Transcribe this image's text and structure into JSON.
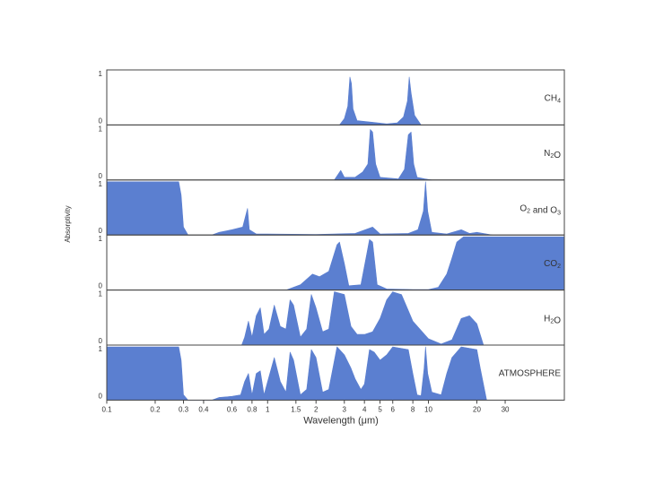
{
  "chart_data": {
    "type": "area",
    "xlabel": "Wavelength (μm)",
    "ylabel": "Absorptivity",
    "x_scale": "log",
    "xlim": [
      0.1,
      70
    ],
    "ylim": [
      0,
      1
    ],
    "x_ticks": [
      0.1,
      0.2,
      0.3,
      0.4,
      0.6,
      0.8,
      1,
      1.5,
      2,
      3,
      4,
      5,
      6,
      8,
      10,
      20,
      30
    ],
    "x_tick_labels": [
      "0.1",
      "0.2",
      "0.3",
      "0.4",
      "0.6",
      "0.8",
      "1",
      "1.5",
      "2",
      "3",
      "4",
      "5",
      "6",
      "8",
      "10",
      "20",
      "30"
    ],
    "panel_ytick_labels": [
      "1",
      "0"
    ],
    "panels": [
      {
        "name": "CH",
        "sub": "4",
        "points": [
          [
            2.8,
            0
          ],
          [
            3.0,
            0.12
          ],
          [
            3.15,
            0.35
          ],
          [
            3.25,
            0.9
          ],
          [
            3.32,
            0.78
          ],
          [
            3.4,
            0.3
          ],
          [
            3.6,
            0.08
          ],
          [
            4.5,
            0.05
          ],
          [
            5.5,
            0.02
          ],
          [
            6.4,
            0.04
          ],
          [
            7.0,
            0.15
          ],
          [
            7.4,
            0.45
          ],
          [
            7.6,
            0.9
          ],
          [
            7.8,
            0.6
          ],
          [
            8.2,
            0.18
          ],
          [
            9.0,
            0.0
          ]
        ]
      },
      {
        "name": "N",
        "sub": "2",
        "rest": "O",
        "points": [
          [
            2.6,
            0
          ],
          [
            2.85,
            0.18
          ],
          [
            3.0,
            0.05
          ],
          [
            3.5,
            0.05
          ],
          [
            3.9,
            0.15
          ],
          [
            4.2,
            0.3
          ],
          [
            4.35,
            0.95
          ],
          [
            4.5,
            0.9
          ],
          [
            4.7,
            0.3
          ],
          [
            5.0,
            0.05
          ],
          [
            6.5,
            0.02
          ],
          [
            7.1,
            0.2
          ],
          [
            7.5,
            0.85
          ],
          [
            7.8,
            0.9
          ],
          [
            8.1,
            0.3
          ],
          [
            8.5,
            0.05
          ],
          [
            9.5,
            0.02
          ],
          [
            10.5,
            0
          ]
        ]
      },
      {
        "name": "O",
        "sub": "2",
        "rest": " and O",
        "sub2": "3",
        "points": [
          [
            0.1,
            0
          ],
          [
            0.1,
            1
          ],
          [
            0.28,
            1
          ],
          [
            0.29,
            0.75
          ],
          [
            0.3,
            0.15
          ],
          [
            0.32,
            0.0
          ],
          [
            0.45,
            0.0
          ],
          [
            0.5,
            0.05
          ],
          [
            0.6,
            0.1
          ],
          [
            0.7,
            0.15
          ],
          [
            0.75,
            0.5
          ],
          [
            0.77,
            0.1
          ],
          [
            0.85,
            0.02
          ],
          [
            1.0,
            0.02
          ],
          [
            2.0,
            0.01
          ],
          [
            3.5,
            0.03
          ],
          [
            4.5,
            0.15
          ],
          [
            5.0,
            0.02
          ],
          [
            7.5,
            0.03
          ],
          [
            8.6,
            0.1
          ],
          [
            9.3,
            0.45
          ],
          [
            9.6,
            1.0
          ],
          [
            9.9,
            0.45
          ],
          [
            10.5,
            0.05
          ],
          [
            13.0,
            0.02
          ],
          [
            16.0,
            0.1
          ],
          [
            18.0,
            0.03
          ],
          [
            20.0,
            0.05
          ],
          [
            25.0,
            0
          ]
        ]
      },
      {
        "name": "CO",
        "sub": "2",
        "points": [
          [
            1.3,
            0
          ],
          [
            1.6,
            0.1
          ],
          [
            1.9,
            0.3
          ],
          [
            2.1,
            0.25
          ],
          [
            2.4,
            0.35
          ],
          [
            2.7,
            0.85
          ],
          [
            2.8,
            0.9
          ],
          [
            3.0,
            0.5
          ],
          [
            3.2,
            0.08
          ],
          [
            3.8,
            0.1
          ],
          [
            4.15,
            0.7
          ],
          [
            4.3,
            0.95
          ],
          [
            4.5,
            0.9
          ],
          [
            4.8,
            0.1
          ],
          [
            5.5,
            0.02
          ],
          [
            8.0,
            0.01
          ],
          [
            10.0,
            0.01
          ],
          [
            11.5,
            0.05
          ],
          [
            13.0,
            0.3
          ],
          [
            14.0,
            0.6
          ],
          [
            15.0,
            0.9
          ],
          [
            16.5,
            1.0
          ],
          [
            70,
            1.0
          ],
          [
            70,
            0
          ]
        ]
      },
      {
        "name": "H",
        "sub": "2",
        "rest": "O",
        "points": [
          [
            0.69,
            0
          ],
          [
            0.72,
            0.15
          ],
          [
            0.76,
            0.45
          ],
          [
            0.8,
            0.15
          ],
          [
            0.85,
            0.55
          ],
          [
            0.9,
            0.7
          ],
          [
            0.95,
            0.2
          ],
          [
            1.02,
            0.3
          ],
          [
            1.1,
            0.75
          ],
          [
            1.2,
            0.35
          ],
          [
            1.3,
            0.3
          ],
          [
            1.38,
            0.85
          ],
          [
            1.45,
            0.75
          ],
          [
            1.6,
            0.15
          ],
          [
            1.75,
            0.3
          ],
          [
            1.87,
            0.95
          ],
          [
            2.0,
            0.7
          ],
          [
            2.2,
            0.25
          ],
          [
            2.4,
            0.3
          ],
          [
            2.6,
            1.0
          ],
          [
            3.0,
            0.95
          ],
          [
            3.3,
            0.35
          ],
          [
            3.6,
            0.2
          ],
          [
            4.0,
            0.2
          ],
          [
            4.5,
            0.25
          ],
          [
            5.0,
            0.5
          ],
          [
            5.5,
            0.85
          ],
          [
            6.0,
            1.0
          ],
          [
            6.8,
            0.95
          ],
          [
            8.0,
            0.45
          ],
          [
            10.0,
            0.12
          ],
          [
            12.0,
            0.02
          ],
          [
            14.0,
            0.1
          ],
          [
            16.0,
            0.5
          ],
          [
            18.0,
            0.55
          ],
          [
            20.0,
            0.4
          ],
          [
            22.0,
            0.0
          ]
        ]
      },
      {
        "name": "ATMOSPHERE",
        "points": [
          [
            0.1,
            0
          ],
          [
            0.1,
            1
          ],
          [
            0.28,
            1
          ],
          [
            0.29,
            0.75
          ],
          [
            0.3,
            0.1
          ],
          [
            0.32,
            0.0
          ],
          [
            0.45,
            0.0
          ],
          [
            0.5,
            0.05
          ],
          [
            0.6,
            0.07
          ],
          [
            0.68,
            0.1
          ],
          [
            0.72,
            0.35
          ],
          [
            0.76,
            0.5
          ],
          [
            0.8,
            0.1
          ],
          [
            0.85,
            0.5
          ],
          [
            0.9,
            0.55
          ],
          [
            0.95,
            0.1
          ],
          [
            1.0,
            0.35
          ],
          [
            1.1,
            0.8
          ],
          [
            1.2,
            0.35
          ],
          [
            1.3,
            0.15
          ],
          [
            1.38,
            0.9
          ],
          [
            1.45,
            0.75
          ],
          [
            1.6,
            0.1
          ],
          [
            1.75,
            0.2
          ],
          [
            1.87,
            0.95
          ],
          [
            2.0,
            0.8
          ],
          [
            2.2,
            0.15
          ],
          [
            2.4,
            0.2
          ],
          [
            2.7,
            1.0
          ],
          [
            3.0,
            0.85
          ],
          [
            3.3,
            0.6
          ],
          [
            3.5,
            0.4
          ],
          [
            3.8,
            0.2
          ],
          [
            4.0,
            0.3
          ],
          [
            4.3,
            0.95
          ],
          [
            4.6,
            0.9
          ],
          [
            5.0,
            0.75
          ],
          [
            5.5,
            0.85
          ],
          [
            6.0,
            1.0
          ],
          [
            7.5,
            0.95
          ],
          [
            8.0,
            0.5
          ],
          [
            8.5,
            0.1
          ],
          [
            9.0,
            0.08
          ],
          [
            9.4,
            0.6
          ],
          [
            9.6,
            1.0
          ],
          [
            9.9,
            0.5
          ],
          [
            10.5,
            0.15
          ],
          [
            12.0,
            0.1
          ],
          [
            13.0,
            0.5
          ],
          [
            14.0,
            0.8
          ],
          [
            16.0,
            1.0
          ],
          [
            20.0,
            0.95
          ],
          [
            21.0,
            0.6
          ],
          [
            23.0,
            0.0
          ]
        ]
      }
    ]
  }
}
